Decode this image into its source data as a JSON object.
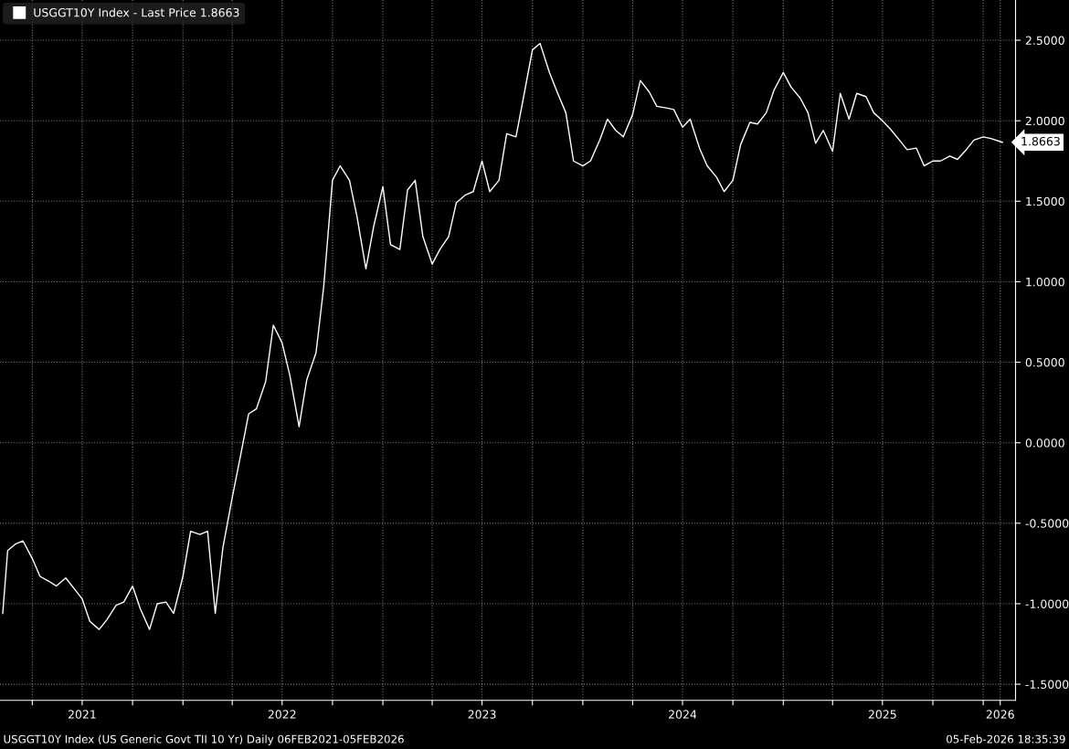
{
  "chart_data": {
    "type": "line",
    "x": [
      "2021-02-06",
      "2021-02-15",
      "2021-03-01",
      "2021-03-15",
      "2021-04-01",
      "2021-04-15",
      "2021-05-01",
      "2021-05-15",
      "2021-06-01",
      "2021-06-15",
      "2021-07-01",
      "2021-07-15",
      "2021-08-01",
      "2021-08-15",
      "2021-09-01",
      "2021-09-15",
      "2021-10-01",
      "2021-10-15",
      "2021-11-01",
      "2021-11-15",
      "2021-12-01",
      "2021-12-15",
      "2022-01-01",
      "2022-01-15",
      "2022-02-01",
      "2022-02-15",
      "2022-03-01",
      "2022-03-15",
      "2022-04-01",
      "2022-04-15",
      "2022-05-01",
      "2022-05-15",
      "2022-06-01",
      "2022-06-15",
      "2022-07-01",
      "2022-07-15",
      "2022-08-01",
      "2022-08-15",
      "2022-09-01",
      "2022-09-15",
      "2022-10-01",
      "2022-10-15",
      "2022-11-01",
      "2022-11-15",
      "2022-12-01",
      "2022-12-15",
      "2023-01-01",
      "2023-01-15",
      "2023-02-01",
      "2023-02-15",
      "2023-03-01",
      "2023-03-15",
      "2023-04-01",
      "2023-04-15",
      "2023-05-01",
      "2023-05-15",
      "2023-06-01",
      "2023-06-15",
      "2023-07-01",
      "2023-07-15",
      "2023-08-01",
      "2023-08-15",
      "2023-09-01",
      "2023-09-15",
      "2023-10-01",
      "2023-10-15",
      "2023-11-01",
      "2023-11-15",
      "2023-12-01",
      "2023-12-15",
      "2024-01-01",
      "2024-01-15",
      "2024-02-01",
      "2024-02-15",
      "2024-03-01",
      "2024-03-15",
      "2024-04-01",
      "2024-04-15",
      "2024-05-01",
      "2024-05-15",
      "2024-06-01",
      "2024-06-15",
      "2024-07-01",
      "2024-07-15",
      "2024-08-01",
      "2024-08-15",
      "2024-09-01",
      "2024-09-15",
      "2024-10-01",
      "2024-10-15",
      "2024-11-01",
      "2024-11-15",
      "2024-12-01",
      "2024-12-15",
      "2025-01-01",
      "2025-01-15",
      "2025-02-01",
      "2025-02-15",
      "2025-03-01",
      "2025-03-15",
      "2025-04-01",
      "2025-04-15",
      "2025-05-01",
      "2025-05-15",
      "2025-06-01",
      "2025-06-15",
      "2025-07-01",
      "2025-07-15",
      "2025-08-01",
      "2025-08-15",
      "2025-09-01",
      "2025-09-15",
      "2025-10-01",
      "2025-10-15",
      "2025-11-01",
      "2025-11-15",
      "2025-12-01",
      "2025-12-15",
      "2026-01-01",
      "2026-01-15",
      "2026-02-05"
    ],
    "series": [
      {
        "name": "USGGT10Y Index - Last Price 1.8663",
        "color": "#ffffff",
        "values": [
          -1.06,
          -0.67,
          -0.63,
          -0.61,
          -0.72,
          -0.83,
          -0.86,
          -0.89,
          -0.84,
          -0.9,
          -0.97,
          -1.11,
          -1.16,
          -1.1,
          -1.01,
          -0.99,
          -0.89,
          -1.03,
          -1.16,
          -1.0,
          -0.99,
          -1.06,
          -0.83,
          -0.55,
          -0.57,
          -0.55,
          -1.06,
          -0.65,
          -0.34,
          -0.1,
          0.18,
          0.21,
          0.38,
          0.73,
          0.62,
          0.42,
          0.1,
          0.39,
          0.56,
          0.97,
          1.63,
          1.72,
          1.63,
          1.4,
          1.08,
          1.34,
          1.59,
          1.23,
          1.2,
          1.57,
          1.63,
          1.28,
          1.11,
          1.2,
          1.28,
          1.49,
          1.54,
          1.56,
          1.75,
          1.56,
          1.63,
          1.92,
          1.9,
          2.15,
          2.44,
          2.48,
          2.3,
          2.18,
          2.05,
          1.75,
          1.72,
          1.75,
          1.88,
          2.01,
          1.94,
          1.9,
          2.04,
          2.25,
          2.18,
          2.09,
          2.08,
          2.07,
          1.96,
          2.01,
          1.83,
          1.72,
          1.65,
          1.56,
          1.63,
          1.85,
          1.99,
          1.98,
          2.05,
          2.19,
          2.3,
          2.21,
          2.14,
          2.05,
          1.86,
          1.94,
          1.81,
          2.17,
          2.01,
          2.17,
          2.15,
          2.05,
          2.0,
          1.95,
          1.88,
          1.82,
          1.83,
          1.72,
          1.75,
          1.75,
          1.78,
          1.76,
          1.82,
          1.88,
          1.9,
          1.89,
          1.8663
        ]
      }
    ],
    "xlim": [
      "2021-02-01",
      "2026-03-01"
    ],
    "xticks": [
      {
        "value": "2021-04-01",
        "label": null
      },
      {
        "value": "2021-07-01",
        "label": "2021"
      },
      {
        "value": "2021-10-01",
        "label": null
      },
      {
        "value": "2022-01-01",
        "label": null
      },
      {
        "value": "2022-04-01",
        "label": null
      },
      {
        "value": "2022-07-01",
        "label": "2022"
      },
      {
        "value": "2022-10-01",
        "label": null
      },
      {
        "value": "2023-01-01",
        "label": null
      },
      {
        "value": "2023-04-01",
        "label": null
      },
      {
        "value": "2023-07-01",
        "label": "2023"
      },
      {
        "value": "2023-10-01",
        "label": null
      },
      {
        "value": "2024-01-01",
        "label": null
      },
      {
        "value": "2024-04-01",
        "label": null
      },
      {
        "value": "2024-07-01",
        "label": "2024"
      },
      {
        "value": "2024-10-01",
        "label": null
      },
      {
        "value": "2025-01-01",
        "label": null
      },
      {
        "value": "2025-04-01",
        "label": null
      },
      {
        "value": "2025-07-01",
        "label": "2025"
      },
      {
        "value": "2025-10-01",
        "label": null
      },
      {
        "value": "2026-01-01",
        "label": null
      },
      {
        "value": "2026-02-01",
        "label": "2026"
      }
    ],
    "ylim": [
      -1.6,
      2.75
    ],
    "yticks": [
      {
        "value": -1.5,
        "label": "-1.5000"
      },
      {
        "value": -1.0,
        "label": "-1.0000"
      },
      {
        "value": -0.5,
        "label": "-0.5000"
      },
      {
        "value": 0.0,
        "label": "0.0000"
      },
      {
        "value": 0.5,
        "label": "0.5000"
      },
      {
        "value": 1.0,
        "label": "1.0000"
      },
      {
        "value": 1.5,
        "label": "1.5000"
      },
      {
        "value": 2.0,
        "label": "2.0000"
      },
      {
        "value": 2.5,
        "label": "2.5000"
      }
    ],
    "grid": true,
    "legend": "top left",
    "line_style": "solid",
    "annotations": [
      {
        "text": "1.8663",
        "x": "2026-02-05",
        "y": 1.8663
      },
      "USGGT10Y Index (US Generic Govt TII 10 Yr) Daily 06FEB2021-05FEB2026",
      "05-Feb-2026 18:35:39"
    ]
  }
}
